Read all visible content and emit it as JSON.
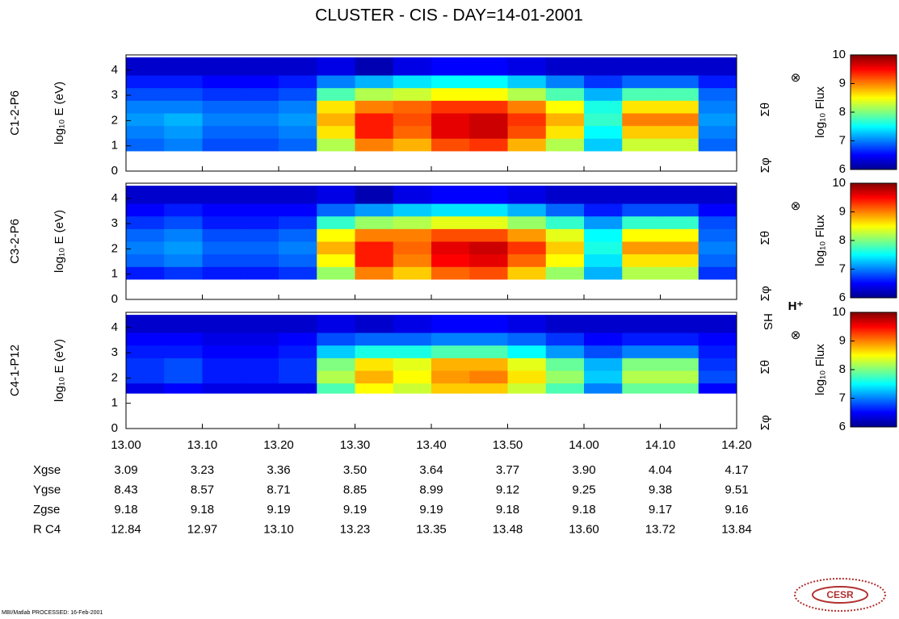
{
  "chart_data": {
    "type": "heatmap",
    "title": "CLUSTER - CIS - DAY=14-01-2001",
    "xlim": [
      780,
      860
    ],
    "xticks": [
      {
        "value": 780,
        "label": "13.00"
      },
      {
        "value": 790,
        "label": "13.10"
      },
      {
        "value": 800,
        "label": "13.20"
      },
      {
        "value": 810,
        "label": "13.30"
      },
      {
        "value": 820,
        "label": "13.40"
      },
      {
        "value": 830,
        "label": "13.50"
      },
      {
        "value": 840,
        "label": "14.00"
      },
      {
        "value": 850,
        "label": "14.10"
      },
      {
        "value": 860,
        "label": "14.20"
      }
    ],
    "x_edges": [
      780,
      785,
      790,
      795,
      800,
      805,
      810,
      815,
      820,
      825,
      830,
      835,
      840,
      845,
      850,
      855,
      860
    ],
    "colorbar_label": "log₁₀ Flux",
    "clim": [
      6,
      10
    ],
    "cticks": [
      6,
      7,
      8,
      9,
      10
    ],
    "panels": [
      {
        "name": "C1-2-P6",
        "ylabel": "log₁₀ E (eV)",
        "ylim": [
          0,
          4.6
        ],
        "yticks": [
          0,
          1,
          2,
          3,
          4
        ],
        "markers": [
          "⊗",
          "Σθ",
          "Σφ"
        ],
        "y_edges": [
          0.8,
          1.3,
          1.8,
          2.3,
          2.8,
          3.3,
          3.8,
          4.5
        ],
        "z": [
          [
            6.9,
            7.0,
            6.8,
            6.8,
            6.9,
            8.2,
            9.0,
            8.8,
            9.2,
            9.3,
            8.8,
            8.2,
            7.3,
            8.3,
            8.3,
            6.9
          ],
          [
            7.0,
            7.1,
            6.9,
            6.9,
            7.0,
            8.6,
            9.4,
            9.1,
            9.6,
            9.7,
            9.2,
            8.6,
            7.5,
            8.7,
            8.7,
            7.0
          ],
          [
            7.1,
            7.2,
            7.0,
            7.0,
            7.1,
            8.8,
            9.4,
            9.2,
            9.6,
            9.7,
            9.3,
            8.8,
            7.7,
            9.0,
            9.0,
            7.1
          ],
          [
            7.0,
            7.0,
            6.9,
            6.9,
            7.0,
            8.6,
            9.0,
            9.1,
            9.3,
            9.3,
            9.0,
            8.5,
            7.6,
            8.6,
            8.6,
            7.0
          ],
          [
            6.8,
            6.8,
            6.7,
            6.7,
            6.8,
            7.8,
            8.2,
            8.3,
            8.5,
            8.5,
            8.2,
            7.8,
            7.2,
            7.8,
            7.8,
            6.9
          ],
          [
            6.6,
            6.6,
            6.5,
            6.5,
            6.6,
            7.0,
            7.2,
            7.4,
            7.5,
            7.5,
            7.3,
            7.0,
            6.7,
            6.9,
            6.9,
            6.6
          ],
          [
            6.3,
            6.3,
            6.3,
            6.3,
            6.3,
            6.4,
            6.2,
            6.4,
            6.5,
            6.5,
            6.4,
            6.3,
            6.3,
            6.3,
            6.3,
            6.3
          ]
        ]
      },
      {
        "name": "C3-2-P6",
        "ylabel": "log₁₀ E (eV)",
        "ylim": [
          0,
          4.6
        ],
        "yticks": [
          0,
          1,
          2,
          3,
          4
        ],
        "markers": [
          "⊗",
          "Σθ",
          "Σφ"
        ],
        "y_edges": [
          0.8,
          1.3,
          1.8,
          2.3,
          2.8,
          3.3,
          3.8,
          4.5
        ],
        "z": [
          [
            6.6,
            6.7,
            6.6,
            6.6,
            6.7,
            8.1,
            9.0,
            8.7,
            9.1,
            9.2,
            8.7,
            8.1,
            7.2,
            8.2,
            8.2,
            6.7
          ],
          [
            6.9,
            7.0,
            6.8,
            6.8,
            6.9,
            8.5,
            9.4,
            9.0,
            9.5,
            9.6,
            9.1,
            8.5,
            7.4,
            8.6,
            8.6,
            6.9
          ],
          [
            7.0,
            7.1,
            6.9,
            6.9,
            7.0,
            8.8,
            9.4,
            9.1,
            9.6,
            9.7,
            9.3,
            8.7,
            7.6,
            8.9,
            8.9,
            7.0
          ],
          [
            6.9,
            7.0,
            6.8,
            6.8,
            6.9,
            8.5,
            9.0,
            9.0,
            9.2,
            9.2,
            8.9,
            8.4,
            7.5,
            8.5,
            8.5,
            6.9
          ],
          [
            6.7,
            6.8,
            6.6,
            6.6,
            6.7,
            7.7,
            8.1,
            8.2,
            8.4,
            8.4,
            8.1,
            7.7,
            7.1,
            7.7,
            7.7,
            6.8
          ],
          [
            6.5,
            6.6,
            6.5,
            6.5,
            6.5,
            6.9,
            7.1,
            7.3,
            7.4,
            7.4,
            7.2,
            6.9,
            6.6,
            6.8,
            6.8,
            6.5
          ],
          [
            6.3,
            6.3,
            6.3,
            6.3,
            6.3,
            6.4,
            6.2,
            6.4,
            6.5,
            6.5,
            6.4,
            6.3,
            6.3,
            6.3,
            6.3,
            6.3
          ]
        ]
      },
      {
        "name": "C4-1-P12",
        "ylabel": "log₁₀ E (eV)",
        "ylim": [
          0,
          4.6
        ],
        "yticks": [
          0,
          1,
          2,
          3,
          4
        ],
        "markers": [
          "⊗",
          "Σθ",
          "Σφ",
          "HS",
          "H⁺"
        ],
        "y_edges": [
          1.4,
          1.8,
          2.3,
          2.8,
          3.3,
          3.8,
          4.5
        ],
        "z": [
          [
            6.4,
            6.5,
            6.4,
            6.4,
            6.4,
            7.8,
            8.5,
            8.3,
            8.7,
            8.7,
            8.3,
            7.8,
            7.0,
            7.9,
            7.9,
            6.5
          ],
          [
            6.7,
            6.8,
            6.6,
            6.6,
            6.7,
            8.2,
            8.8,
            8.5,
            8.9,
            9.0,
            8.6,
            8.1,
            7.3,
            8.2,
            8.2,
            6.8
          ],
          [
            6.7,
            6.8,
            6.6,
            6.6,
            6.7,
            8.0,
            8.6,
            8.4,
            8.8,
            8.8,
            8.4,
            7.9,
            7.2,
            8.0,
            8.0,
            6.7
          ],
          [
            6.6,
            6.6,
            6.5,
            6.5,
            6.6,
            7.3,
            7.6,
            7.6,
            7.8,
            7.8,
            7.5,
            7.1,
            6.8,
            7.0,
            7.0,
            6.6
          ],
          [
            6.5,
            6.5,
            6.4,
            6.4,
            6.5,
            6.8,
            6.9,
            6.9,
            7.0,
            7.0,
            6.9,
            6.7,
            6.5,
            6.6,
            6.6,
            6.5
          ],
          [
            6.3,
            6.3,
            6.3,
            6.3,
            6.3,
            6.4,
            6.3,
            6.4,
            6.5,
            6.5,
            6.4,
            6.3,
            6.3,
            6.3,
            6.3,
            6.3
          ]
        ]
      }
    ],
    "ephemeris": [
      {
        "label": "Xgse",
        "values": [
          "3.09",
          "3.23",
          "3.36",
          "3.50",
          "3.64",
          "3.77",
          "3.90",
          "4.04",
          "4.17"
        ]
      },
      {
        "label": "Ygse",
        "values": [
          "8.43",
          "8.57",
          "8.71",
          "8.85",
          "8.99",
          "9.12",
          "9.25",
          "9.38",
          "9.51"
        ]
      },
      {
        "label": "Zgse",
        "values": [
          "9.18",
          "9.18",
          "9.19",
          "9.19",
          "9.19",
          "9.18",
          "9.18",
          "9.17",
          "9.16"
        ]
      },
      {
        "label": "R C4",
        "values": [
          "12.84",
          "12.97",
          "13.10",
          "13.23",
          "13.35",
          "13.48",
          "13.60",
          "13.72",
          "13.84"
        ]
      }
    ],
    "footer": "MBI/Matlab PROCESSED: 16-Feb-2001",
    "logo": "CESR"
  }
}
